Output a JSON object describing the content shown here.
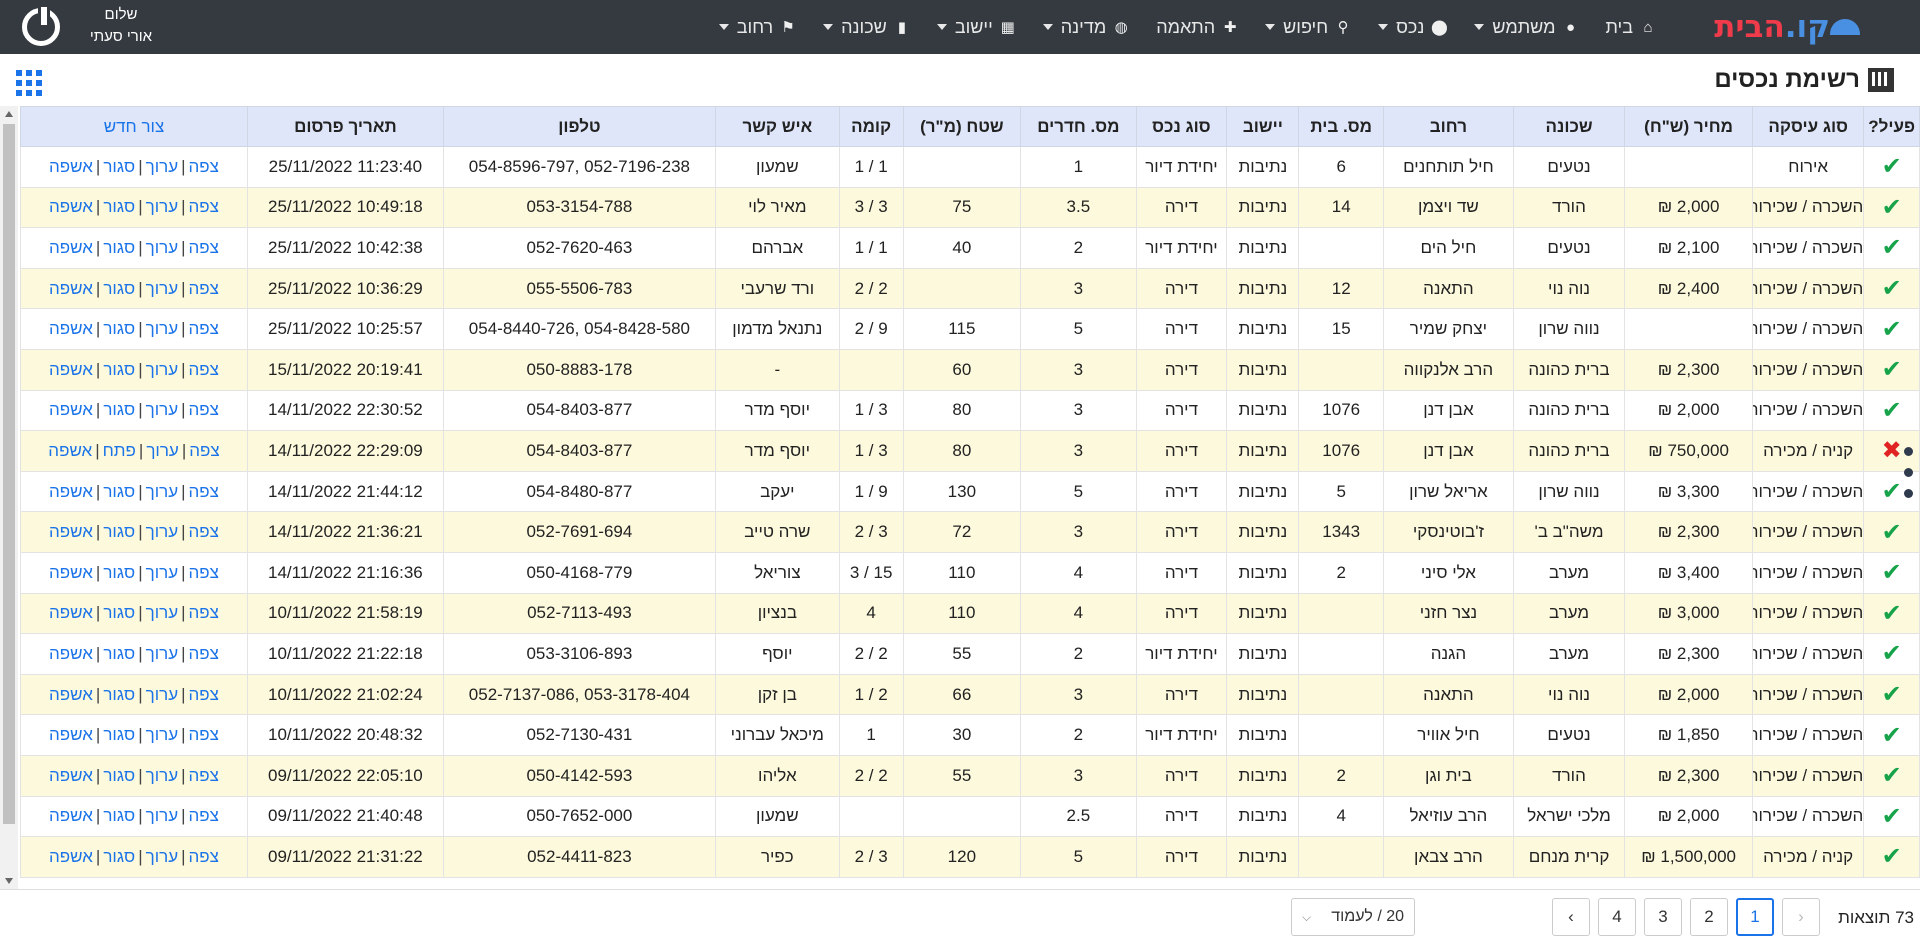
{
  "nav": {
    "logo_a": "קו.",
    "logo_b": "הבית",
    "items": [
      {
        "label": "בית",
        "icon": "home-icon",
        "glyph": "⌂",
        "caret": false
      },
      {
        "label": "משתמש",
        "icon": "user-icon",
        "glyph": "●",
        "caret": true
      },
      {
        "label": "נכס",
        "icon": "map-pin-icon",
        "glyph": "⬤",
        "caret": true
      },
      {
        "label": "חיפוש",
        "icon": "search-icon",
        "glyph": "⚲",
        "caret": true
      },
      {
        "label": "התאמה",
        "icon": "puzzle-icon",
        "glyph": "✚",
        "caret": false
      },
      {
        "label": "מדינה",
        "icon": "globe-icon",
        "glyph": "◍",
        "caret": true
      },
      {
        "label": "יישוב",
        "icon": "city-icon",
        "glyph": "▦",
        "caret": true
      },
      {
        "label": "שכונה",
        "icon": "building-icon",
        "glyph": "▮",
        "caret": true
      },
      {
        "label": "רחוב",
        "icon": "sign-icon",
        "glyph": "⚑",
        "caret": true
      }
    ],
    "greeting": "שלום",
    "username": "אורי סעתי"
  },
  "page": {
    "title": "רשימת נכסים"
  },
  "table": {
    "headers": [
      "פעיל?",
      "סוג עיסקה",
      "מחיר (ש\"ח)",
      "שכונה",
      "רחוב",
      "מס. בית",
      "יישוב",
      "סוג נכס",
      "מס. חדרים",
      "שטח (מ\"ר)",
      "קומה",
      "איש קשר",
      "טלפון",
      "תאריך פרסום"
    ],
    "new_label": "צור חדש",
    "actions": {
      "view": "צפה",
      "edit": "ערוך",
      "close": "סגור",
      "open": "פתח",
      "confirm": "אשפה"
    },
    "rows": [
      {
        "active": true,
        "deal": "אירוח",
        "price": "",
        "hood": "נטעים",
        "street": "חיל תותחנים",
        "num": "6",
        "city": "נתיבות",
        "type": "יחידת דיור",
        "rooms": "1",
        "area": "",
        "floor": "1 / 1",
        "contact": "שמעון",
        "phone": "052-7196-238 ,054-8596-797",
        "date": "11:23:40 25/11/2022"
      },
      {
        "active": true,
        "deal": "השכרה / שכירות",
        "price": "2,000 ₪",
        "hood": "הורד",
        "street": "שד ויצמן",
        "num": "14",
        "city": "נתיבות",
        "type": "דירה",
        "rooms": "3.5",
        "area": "75",
        "floor": "3 / 3",
        "contact": "מאיר לוי",
        "phone": "053-3154-788",
        "date": "10:49:18 25/11/2022"
      },
      {
        "active": true,
        "deal": "השכרה / שכירות",
        "price": "2,100 ₪",
        "hood": "נטעים",
        "street": "חיל הים",
        "num": "",
        "city": "נתיבות",
        "type": "יחידת דיור",
        "rooms": "2",
        "area": "40",
        "floor": "1 / 1",
        "contact": "אברהם",
        "phone": "052-7620-463",
        "date": "10:42:38 25/11/2022"
      },
      {
        "active": true,
        "deal": "השכרה / שכירות",
        "price": "2,400 ₪",
        "hood": "נוה נוי",
        "street": "התאנה",
        "num": "12",
        "city": "נתיבות",
        "type": "דירה",
        "rooms": "3",
        "area": "",
        "floor": "2 / 2",
        "contact": "ורד שרעבי",
        "phone": "055-5506-783",
        "date": "10:36:29 25/11/2022"
      },
      {
        "active": true,
        "deal": "השכרה / שכירות",
        "price": "",
        "hood": "נווה שרון",
        "street": "יצחק שמיר",
        "num": "15",
        "city": "נתיבות",
        "type": "דירה",
        "rooms": "5",
        "area": "115",
        "floor": "9 / 2",
        "contact": "נתנאל מדמון",
        "phone": "054-8428-580 ,054-8440-726",
        "date": "10:25:57 25/11/2022"
      },
      {
        "active": true,
        "deal": "השכרה / שכירות",
        "price": "2,300 ₪",
        "hood": "ברית כהונה",
        "street": "הרב אלנקווה",
        "num": "",
        "city": "נתיבות",
        "type": "דירה",
        "rooms": "3",
        "area": "60",
        "floor": "",
        "contact": "-",
        "phone": "050-8883-178",
        "date": "20:19:41 15/11/2022"
      },
      {
        "active": true,
        "deal": "השכרה / שכירות",
        "price": "2,000 ₪",
        "hood": "ברית כהונה",
        "street": "אבן דנן",
        "num": "1076",
        "city": "נתיבות",
        "type": "דירה",
        "rooms": "3",
        "area": "80",
        "floor": "3 / 1",
        "contact": "יוסף מדר",
        "phone": "054-8403-877",
        "date": "22:30:52 14/11/2022"
      },
      {
        "active": false,
        "deal": "קניה / מכירה",
        "price": "750,000 ₪",
        "hood": "ברית כהונה",
        "street": "אבן דנן",
        "num": "1076",
        "city": "נתיבות",
        "type": "דירה",
        "rooms": "3",
        "area": "80",
        "floor": "3 / 1",
        "contact": "יוסף מדר",
        "phone": "054-8403-877",
        "date": "22:29:09 14/11/2022"
      },
      {
        "active": true,
        "deal": "השכרה / שכירות",
        "price": "3,300 ₪",
        "hood": "נווה שרון",
        "street": "אריאל שרון",
        "num": "5",
        "city": "נתיבות",
        "type": "דירה",
        "rooms": "5",
        "area": "130",
        "floor": "9 / 1",
        "contact": "יעקב",
        "phone": "054-8480-877",
        "date": "21:44:12 14/11/2022"
      },
      {
        "active": true,
        "deal": "השכרה / שכירות",
        "price": "2,300 ₪",
        "hood": "משה\"ב ב'",
        "street": "ז'בוטינסקי",
        "num": "1343",
        "city": "נתיבות",
        "type": "דירה",
        "rooms": "3",
        "area": "72",
        "floor": "3 / 2",
        "contact": "שרה טייב",
        "phone": "052-7691-694",
        "date": "21:36:21 14/11/2022"
      },
      {
        "active": true,
        "deal": "השכרה / שכירות",
        "price": "3,400 ₪",
        "hood": "מערב",
        "street": "אלי סיני",
        "num": "2",
        "city": "נתיבות",
        "type": "דירה",
        "rooms": "4",
        "area": "110",
        "floor": "15 / 3",
        "contact": "צוריאל",
        "phone": "050-4168-779",
        "date": "21:16:36 14/11/2022"
      },
      {
        "active": true,
        "deal": "השכרה / שכירות",
        "price": "3,000 ₪",
        "hood": "מערב",
        "street": "נצר חזני",
        "num": "",
        "city": "נתיבות",
        "type": "דירה",
        "rooms": "4",
        "area": "110",
        "floor": "4",
        "contact": "בנציון",
        "phone": "052-7113-493",
        "date": "21:58:19 10/11/2022"
      },
      {
        "active": true,
        "deal": "השכרה / שכירות",
        "price": "2,300 ₪",
        "hood": "מערב",
        "street": "הגנה",
        "num": "",
        "city": "נתיבות",
        "type": "יחידת דיור",
        "rooms": "2",
        "area": "55",
        "floor": "2 / 2",
        "contact": "יוסף",
        "phone": "053-3106-893",
        "date": "21:22:18 10/11/2022"
      },
      {
        "active": true,
        "deal": "השכרה / שכירות",
        "price": "2,000 ₪",
        "hood": "נוה נוי",
        "street": "התאנה",
        "num": "",
        "city": "נתיבות",
        "type": "דירה",
        "rooms": "3",
        "area": "66",
        "floor": "2 / 1",
        "contact": "בן זקן",
        "phone": "053-3178-404 ,052-7137-086",
        "date": "21:02:24 10/11/2022"
      },
      {
        "active": true,
        "deal": "השכרה / שכירות",
        "price": "1,850 ₪",
        "hood": "נטעים",
        "street": "חיל אוויר",
        "num": "",
        "city": "נתיבות",
        "type": "יחידת דיור",
        "rooms": "2",
        "area": "30",
        "floor": "1",
        "contact": "מיכאל עברוני",
        "phone": "052-7130-431",
        "date": "20:48:32 10/11/2022"
      },
      {
        "active": true,
        "deal": "השכרה / שכירות",
        "price": "2,300 ₪",
        "hood": "הורד",
        "street": "בית וגן",
        "num": "2",
        "city": "נתיבות",
        "type": "דירה",
        "rooms": "3",
        "area": "55",
        "floor": "2 / 2",
        "contact": "אליהו",
        "phone": "050-4142-593",
        "date": "22:05:10 09/11/2022"
      },
      {
        "active": true,
        "deal": "השכרה / שכירות",
        "price": "2,000 ₪",
        "hood": "מלכי ישראל",
        "street": "הרב עוזיאל",
        "num": "4",
        "city": "נתיבות",
        "type": "דירה",
        "rooms": "2.5",
        "area": "",
        "floor": "",
        "contact": "שמעון",
        "phone": "050-7652-000",
        "date": "21:40:48 09/11/2022"
      },
      {
        "active": true,
        "deal": "קניה / מכירה",
        "price": "1,500,000 ₪",
        "hood": "קרית מנחם",
        "street": "הרב צבאן",
        "num": "",
        "city": "נתיבות",
        "type": "דירה",
        "rooms": "5",
        "area": "120",
        "floor": "3 / 2",
        "contact": "כפיר",
        "phone": "052-4411-823",
        "date": "21:31:22 09/11/2022"
      }
    ]
  },
  "footer": {
    "results": "73 תוצאות",
    "pages": [
      "1",
      "2",
      "3",
      "4"
    ],
    "prev": "‹",
    "next": "›",
    "per_page": "20 / לעמוד"
  }
}
